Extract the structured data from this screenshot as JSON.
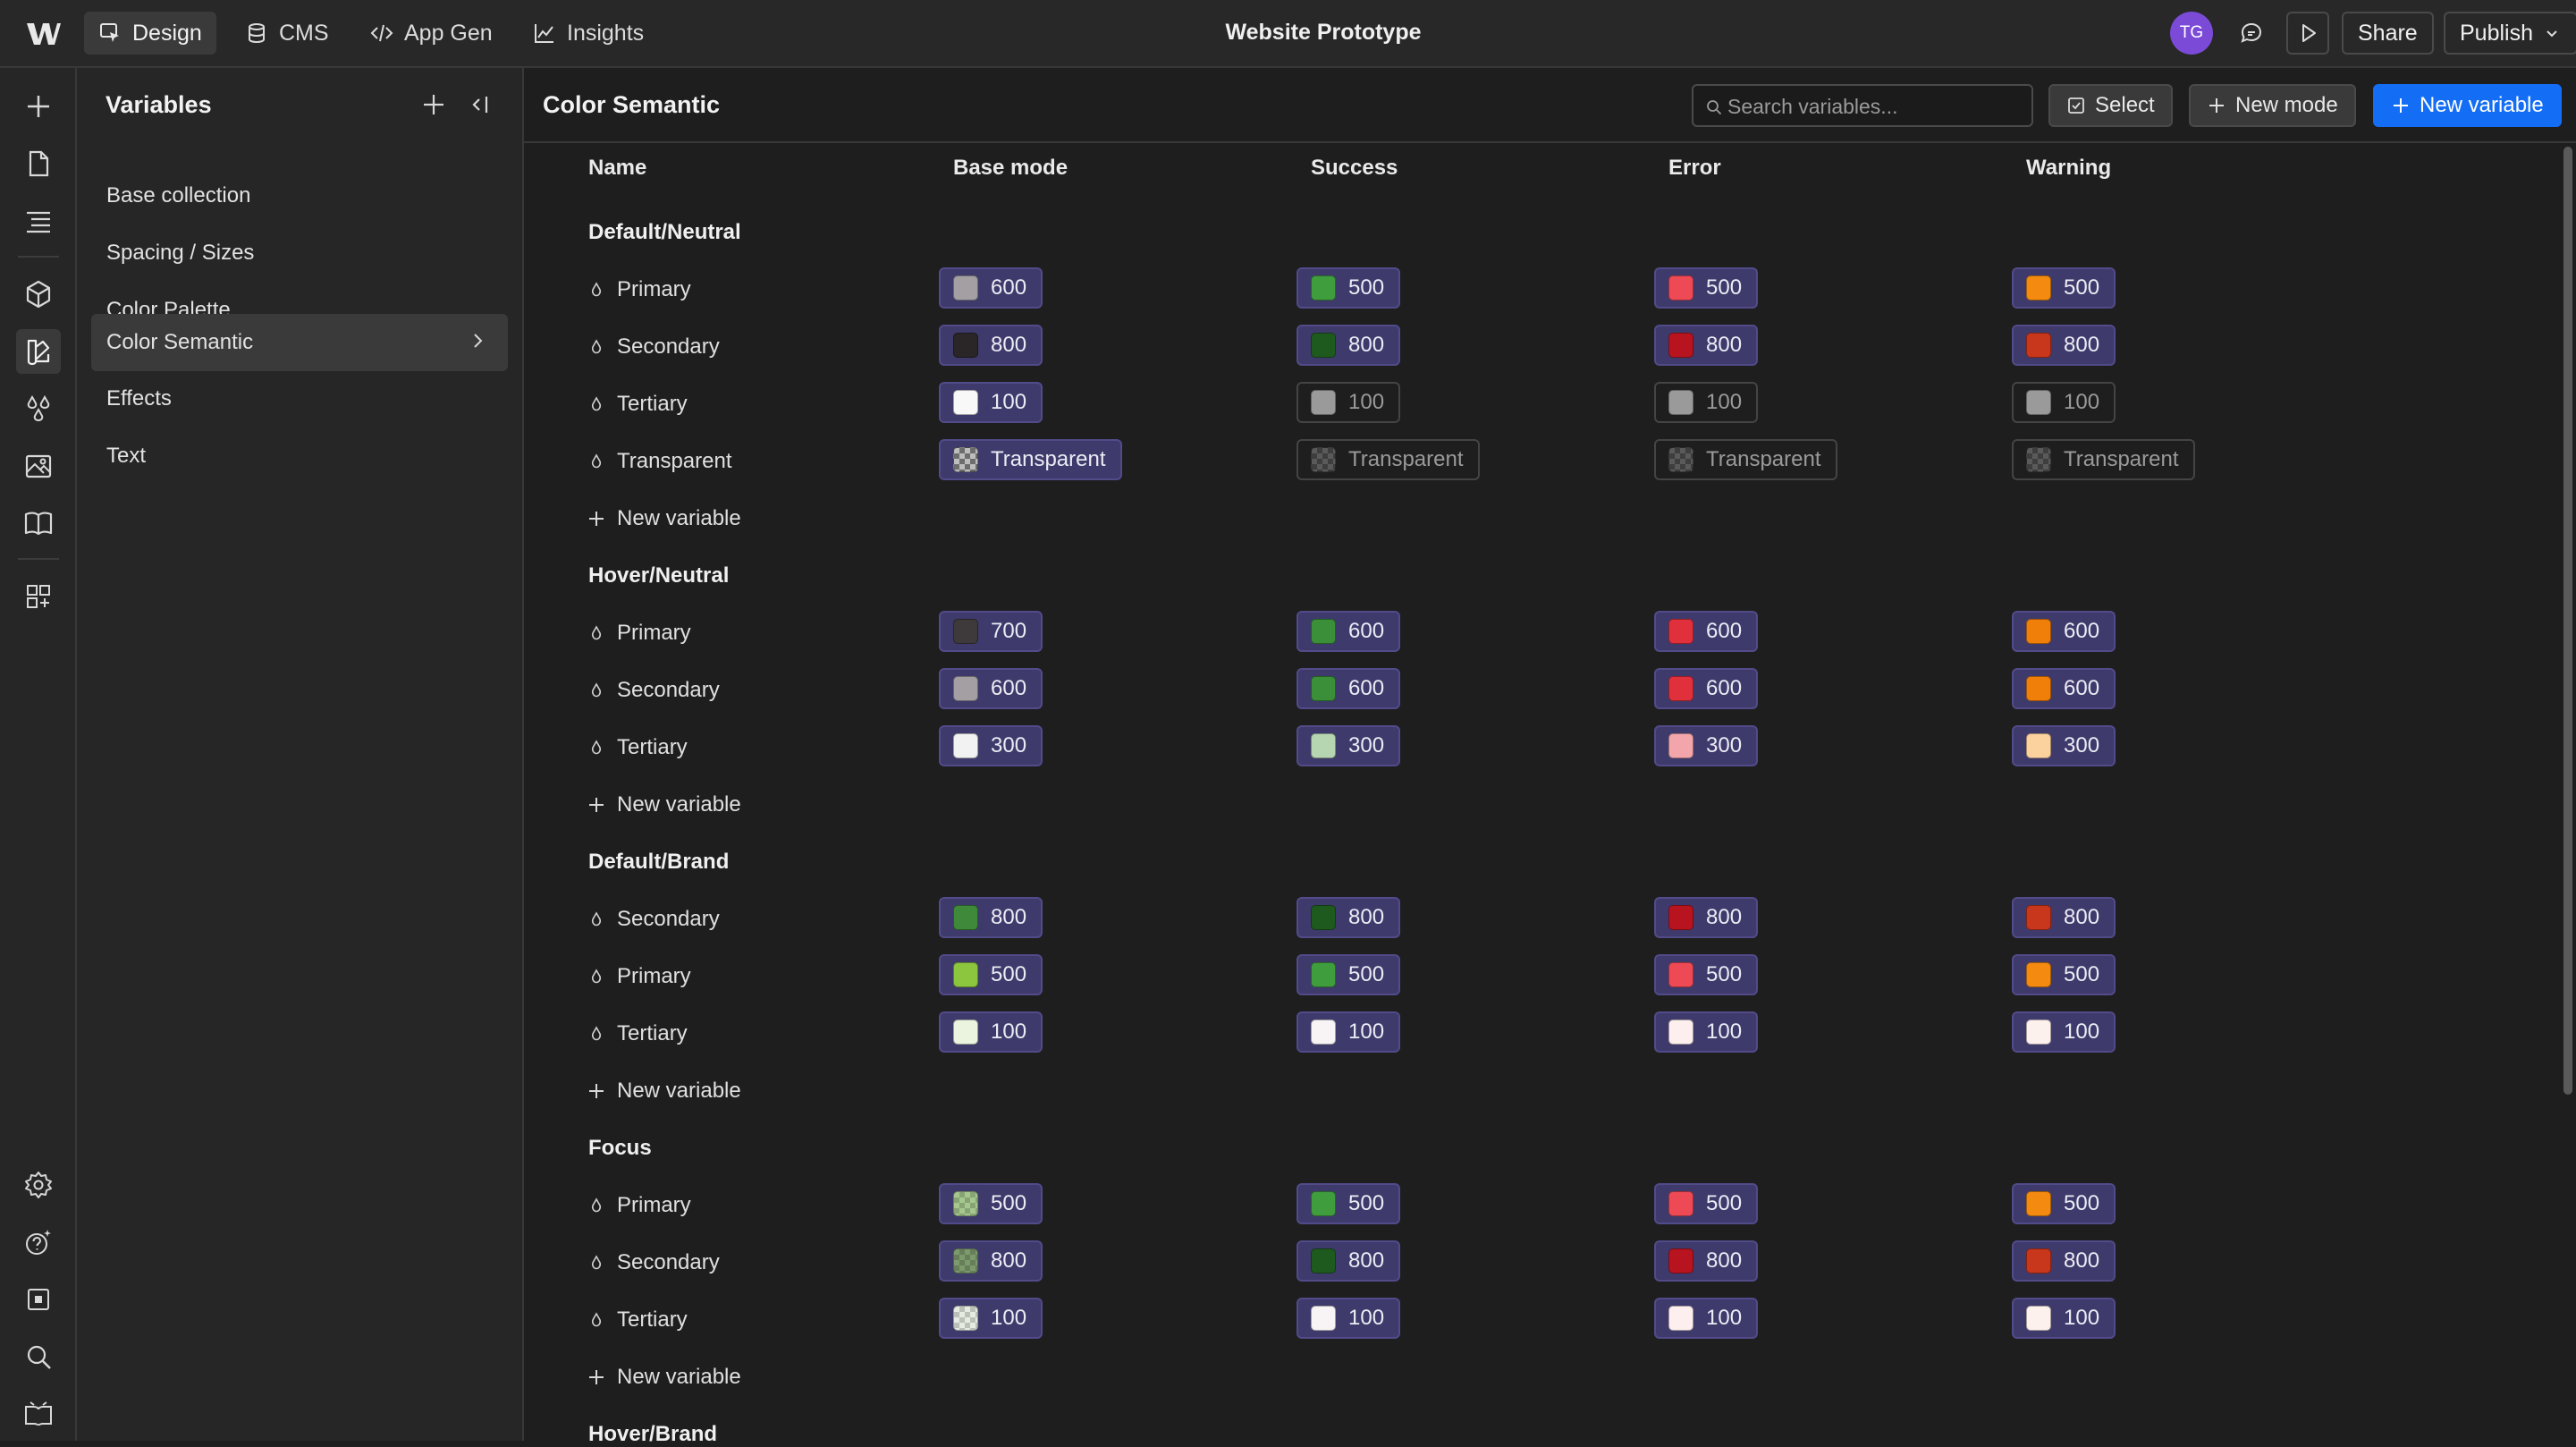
{
  "topbar": {
    "tabs": [
      {
        "label": "Design",
        "icon": "cursor-box-icon"
      },
      {
        "label": "CMS",
        "icon": "database-icon"
      },
      {
        "label": "App Gen",
        "icon": "code-icon"
      },
      {
        "label": "Insights",
        "icon": "chart-line-icon"
      }
    ],
    "title": "Website Prototype",
    "avatar_initials": "TG",
    "share_label": "Share",
    "publish_label": "Publish"
  },
  "panel": {
    "title": "Variables",
    "collections": [
      {
        "label": "Base collection",
        "active": false
      },
      {
        "label": "Spacing / Sizes",
        "active": false
      },
      {
        "label": "Color Palette",
        "active": false
      },
      {
        "label": "Color Semantic",
        "active": true
      },
      {
        "label": "Effects",
        "active": false
      },
      {
        "label": "Text",
        "active": false
      }
    ]
  },
  "main": {
    "title": "Color Semantic",
    "search_placeholder": "Search variables...",
    "select_label": "Select",
    "new_mode_label": "New mode",
    "new_variable_label": "New variable",
    "columns": [
      "Name",
      "Base mode",
      "Success",
      "Error",
      "Warning"
    ],
    "new_variable_row_label": "New variable",
    "groups": [
      {
        "name": "Default/Neutral",
        "rows": [
          {
            "name": "Primary",
            "cells": [
              {
                "value": "600",
                "color": "#a39fa3",
                "ref": true
              },
              {
                "value": "500",
                "color": "#3f9d3d",
                "ref": true
              },
              {
                "value": "500",
                "color": "#ee4a55",
                "ref": true
              },
              {
                "value": "500",
                "color": "#f58a10",
                "ref": true
              }
            ]
          },
          {
            "name": "Secondary",
            "cells": [
              {
                "value": "800",
                "color": "#2a2627",
                "ref": true
              },
              {
                "value": "800",
                "color": "#1e5a1e",
                "ref": true
              },
              {
                "value": "800",
                "color": "#b71420",
                "ref": true
              },
              {
                "value": "800",
                "color": "#c8361c",
                "ref": true
              }
            ]
          },
          {
            "name": "Tertiary",
            "cells": [
              {
                "value": "100",
                "color": "#f8f8f8",
                "ref": true
              },
              {
                "value": "100",
                "color": "#9a9a9a",
                "ref": false
              },
              {
                "value": "100",
                "color": "#9a9a9a",
                "ref": false
              },
              {
                "value": "100",
                "color": "#9a9a9a",
                "ref": false
              }
            ]
          },
          {
            "name": "Transparent",
            "cells": [
              {
                "value": "Transparent",
                "color": "transparent",
                "ref": true
              },
              {
                "value": "Transparent",
                "color": "transparent",
                "ref": false
              },
              {
                "value": "Transparent",
                "color": "transparent",
                "ref": false
              },
              {
                "value": "Transparent",
                "color": "transparent",
                "ref": false
              }
            ]
          }
        ]
      },
      {
        "name": "Hover/Neutral",
        "rows": [
          {
            "name": "Primary",
            "cells": [
              {
                "value": "700",
                "color": "#3e3a3b",
                "ref": true
              },
              {
                "value": "600",
                "color": "#3a8f38",
                "ref": true
              },
              {
                "value": "600",
                "color": "#e0303b",
                "ref": true
              },
              {
                "value": "600",
                "color": "#f07f0a",
                "ref": true
              }
            ]
          },
          {
            "name": "Secondary",
            "cells": [
              {
                "value": "600",
                "color": "#a39fa3",
                "ref": true
              },
              {
                "value": "600",
                "color": "#3a8f38",
                "ref": true
              },
              {
                "value": "600",
                "color": "#e0303b",
                "ref": true
              },
              {
                "value": "600",
                "color": "#f07f0a",
                "ref": true
              }
            ]
          },
          {
            "name": "Tertiary",
            "cells": [
              {
                "value": "300",
                "color": "#f2f2f2",
                "ref": true
              },
              {
                "value": "300",
                "color": "#b5d6b0",
                "ref": true
              },
              {
                "value": "300",
                "color": "#f2a6ab",
                "ref": true
              },
              {
                "value": "300",
                "color": "#fbd19e",
                "ref": true
              }
            ]
          }
        ]
      },
      {
        "name": "Default/Brand",
        "rows": [
          {
            "name": "Secondary",
            "cells": [
              {
                "value": "800",
                "color": "#3f8a3a",
                "ref": true
              },
              {
                "value": "800",
                "color": "#1e5a1e",
                "ref": true
              },
              {
                "value": "800",
                "color": "#b71420",
                "ref": true
              },
              {
                "value": "800",
                "color": "#c8361c",
                "ref": true
              }
            ]
          },
          {
            "name": "Primary",
            "cells": [
              {
                "value": "500",
                "color": "#8cc63f",
                "ref": true
              },
              {
                "value": "500",
                "color": "#3f9d3d",
                "ref": true
              },
              {
                "value": "500",
                "color": "#ee4a55",
                "ref": true
              },
              {
                "value": "500",
                "color": "#f58a10",
                "ref": true
              }
            ]
          },
          {
            "name": "Tertiary",
            "cells": [
              {
                "value": "100",
                "color": "#eaf4de",
                "ref": true
              },
              {
                "value": "100",
                "color": "#f8f4f6",
                "ref": true
              },
              {
                "value": "100",
                "color": "#fcefed",
                "ref": true
              },
              {
                "value": "100",
                "color": "#fdf1ee",
                "ref": true
              }
            ]
          }
        ]
      },
      {
        "name": "Focus",
        "rows": [
          {
            "name": "Primary",
            "cells": [
              {
                "value": "500",
                "color": "#a6c88f",
                "ref": true,
                "tinted": true
              },
              {
                "value": "500",
                "color": "#3f9d3d",
                "ref": true
              },
              {
                "value": "500",
                "color": "#ee4a55",
                "ref": true
              },
              {
                "value": "500",
                "color": "#f58a10",
                "ref": true
              }
            ]
          },
          {
            "name": "Secondary",
            "cells": [
              {
                "value": "800",
                "color": "#7c9a6c",
                "ref": true,
                "tinted": true
              },
              {
                "value": "800",
                "color": "#1e5a1e",
                "ref": true
              },
              {
                "value": "800",
                "color": "#b71420",
                "ref": true
              },
              {
                "value": "800",
                "color": "#c8361c",
                "ref": true
              }
            ]
          },
          {
            "name": "Tertiary",
            "cells": [
              {
                "value": "100",
                "color": "#e4ebe0",
                "ref": true,
                "tinted": true
              },
              {
                "value": "100",
                "color": "#f8f4f6",
                "ref": true
              },
              {
                "value": "100",
                "color": "#fcefed",
                "ref": true
              },
              {
                "value": "100",
                "color": "#fdf1ee",
                "ref": true
              }
            ]
          }
        ]
      },
      {
        "name": "Hover/Brand",
        "rows": []
      }
    ]
  }
}
